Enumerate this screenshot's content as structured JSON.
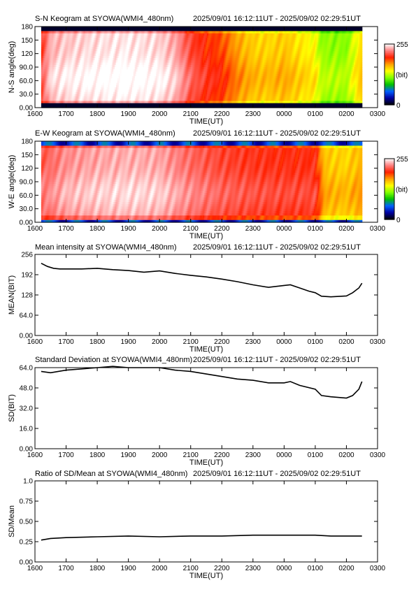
{
  "page": {
    "time_range": "2025/09/01 16:12:11UT - 2025/09/02 02:29:51UT",
    "x_ticks": [
      "1600",
      "1700",
      "1800",
      "1900",
      "2000",
      "2100",
      "2200",
      "2300",
      "0000",
      "0100",
      "0200",
      "0300"
    ],
    "x_label": "TIME(UT)"
  },
  "chart_data": [
    {
      "type": "heatmap",
      "title": "S-N Keogram at SYOWA(WMI4_480nm)",
      "ylabel": "N-S angle(deg)",
      "y_ticks": [
        "0.00",
        "30.0",
        "60.0",
        "90.0",
        "120",
        "150",
        "180"
      ],
      "ylim": [
        0,
        180
      ],
      "xlim": [
        16.0,
        27.0
      ],
      "colorbar": {
        "min_label": "0",
        "max_label": "255",
        "unit": "(bit)"
      },
      "color_stops": [
        "#000000",
        "#0000a0",
        "#0060ff",
        "#00c000",
        "#80ff00",
        "#ffff00",
        "#ffa000",
        "#ff2000",
        "#ff8080",
        "#ffffff"
      ],
      "data_extent_hours": [
        16.2,
        26.5
      ],
      "intensity_profile": [
        {
          "t": 16.2,
          "level": 0.8
        },
        {
          "t": 16.5,
          "level": 0.93
        },
        {
          "t": 17.0,
          "level": 0.95
        },
        {
          "t": 18.0,
          "level": 0.97
        },
        {
          "t": 19.0,
          "level": 0.98
        },
        {
          "t": 20.0,
          "level": 0.96
        },
        {
          "t": 20.5,
          "level": 0.92
        },
        {
          "t": 21.0,
          "level": 0.82
        },
        {
          "t": 21.5,
          "level": 0.77
        },
        {
          "t": 22.0,
          "level": 0.74
        },
        {
          "t": 22.5,
          "level": 0.66
        },
        {
          "t": 23.0,
          "level": 0.61
        },
        {
          "t": 23.5,
          "level": 0.6
        },
        {
          "t": 24.0,
          "level": 0.62
        },
        {
          "t": 24.5,
          "level": 0.58
        },
        {
          "t": 25.0,
          "level": 0.55
        },
        {
          "t": 25.2,
          "level": 0.46
        },
        {
          "t": 26.0,
          "level": 0.45
        },
        {
          "t": 26.5,
          "level": 0.6
        }
      ],
      "edge_dark_deg": [
        0,
        8,
        172,
        180
      ]
    },
    {
      "type": "heatmap",
      "title": "E-W Keogram at SYOWA(WMI4_480nm)",
      "ylabel": "W-E angle(deg)",
      "y_ticks": [
        "0.00",
        "30.0",
        "60.0",
        "90.0",
        "120",
        "150",
        "180"
      ],
      "ylim": [
        0,
        180
      ],
      "xlim": [
        16.0,
        27.0
      ],
      "colorbar": {
        "min_label": "0",
        "max_label": "255",
        "unit": "(bit)"
      },
      "color_stops": [
        "#000000",
        "#0000a0",
        "#0060ff",
        "#00c000",
        "#80ff00",
        "#ffff00",
        "#ffa000",
        "#ff2000",
        "#ff8080",
        "#ffffff"
      ],
      "data_extent_hours": [
        16.2,
        26.5
      ],
      "intensity_profile": [
        {
          "t": 16.2,
          "level": 0.84
        },
        {
          "t": 17.0,
          "level": 0.9
        },
        {
          "t": 18.0,
          "level": 0.92
        },
        {
          "t": 19.0,
          "level": 0.93
        },
        {
          "t": 20.0,
          "level": 0.92
        },
        {
          "t": 21.0,
          "level": 0.86
        },
        {
          "t": 22.0,
          "level": 0.82
        },
        {
          "t": 23.0,
          "level": 0.8
        },
        {
          "t": 24.0,
          "level": 0.79
        },
        {
          "t": 25.0,
          "level": 0.79
        },
        {
          "t": 25.3,
          "level": 0.62
        },
        {
          "t": 26.0,
          "level": 0.6
        },
        {
          "t": 26.5,
          "level": 0.64
        }
      ],
      "edge_dark_deg": [
        0,
        6,
        172,
        180
      ]
    },
    {
      "type": "line",
      "title": "Mean intensity at SYOWA(WMI4_480nm)",
      "ylabel": "MEAN(BIT)",
      "y_ticks": [
        "0.00",
        "64.0",
        "128",
        "192",
        "256"
      ],
      "ylim": [
        0,
        256
      ],
      "xlim": [
        16.0,
        27.0
      ],
      "series": [
        {
          "x": [
            16.2,
            16.4,
            16.6,
            16.8,
            17.0,
            17.5,
            18.0,
            18.5,
            19.0,
            19.5,
            20.0,
            20.5,
            21.0,
            21.5,
            22.0,
            22.5,
            23.0,
            23.5,
            24.0,
            24.2,
            24.5,
            24.8,
            25.0,
            25.2,
            25.5,
            26.0,
            26.2,
            26.4,
            26.5
          ],
          "y": [
            228,
            218,
            212,
            210,
            210,
            210,
            212,
            208,
            205,
            200,
            204,
            196,
            190,
            185,
            178,
            170,
            160,
            152,
            158,
            160,
            150,
            140,
            135,
            124,
            122,
            125,
            135,
            150,
            165
          ]
        }
      ]
    },
    {
      "type": "line",
      "title": "Standard Deviation at SYOWA(WMI4_480nm)",
      "ylabel": "SD(BIT)",
      "y_ticks": [
        "0.00",
        "16.0",
        "32.0",
        "48.0",
        "64.0"
      ],
      "ylim": [
        0,
        64
      ],
      "xlim": [
        16.0,
        27.0
      ],
      "series": [
        {
          "x": [
            16.2,
            16.5,
            17.0,
            17.5,
            18.0,
            18.5,
            19.0,
            19.5,
            20.0,
            20.5,
            21.0,
            21.5,
            22.0,
            22.5,
            23.0,
            23.5,
            24.0,
            24.2,
            24.5,
            25.0,
            25.2,
            25.5,
            26.0,
            26.2,
            26.4,
            26.5
          ],
          "y": [
            61,
            60,
            62,
            63,
            64,
            65,
            64,
            64,
            64,
            62,
            61,
            59,
            57,
            55,
            54,
            52,
            52,
            53,
            50,
            47,
            42,
            41,
            40,
            42,
            47,
            53
          ]
        }
      ]
    },
    {
      "type": "line",
      "title": "Ratio of SD/Mean at SYOWA(WMI4_480nm)",
      "ylabel": "SD/Mean",
      "y_ticks": [
        "0.00",
        "0.25",
        "0.50",
        "0.75",
        "1.0"
      ],
      "ylim": [
        0,
        1.0
      ],
      "xlim": [
        16.0,
        27.0
      ],
      "series": [
        {
          "x": [
            16.2,
            16.5,
            17.0,
            18.0,
            19.0,
            20.0,
            21.0,
            22.0,
            23.0,
            24.0,
            25.0,
            25.5,
            26.0,
            26.5
          ],
          "y": [
            0.27,
            0.29,
            0.3,
            0.31,
            0.32,
            0.31,
            0.32,
            0.32,
            0.33,
            0.33,
            0.33,
            0.32,
            0.32,
            0.32
          ]
        }
      ]
    }
  ]
}
